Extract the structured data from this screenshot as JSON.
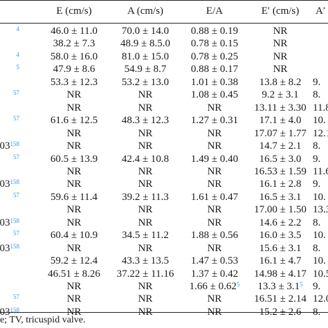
{
  "headers": [
    "E (cm/s)",
    "A (cm/s)",
    "E/A",
    "E′ (cm/s)",
    "A′"
  ],
  "rows": [
    {
      "label": "",
      "ref": "4",
      "E": "46.0 ± 11.0",
      "A": "70.0 ± 14.0",
      "EA": "0.88 ± 0.19",
      "Ep": "NR",
      "Ap": ""
    },
    {
      "label": "",
      "ref": "",
      "E": "38.2 ± 7.3",
      "A": "48.9 ± 8.5.0",
      "EA": "0.78 ± 0.15",
      "Ep": "NR",
      "Ap": ""
    },
    {
      "label": "",
      "ref": "4",
      "E": "58.0 ± 16.0",
      "A": "81.0 ± 15.0",
      "EA": "0.78 ± 0.25",
      "Ep": "NR",
      "Ap": ""
    },
    {
      "label": "",
      "ref": "5",
      "E": "47.9 ± 8.6",
      "A": "54.9 ± 8.7",
      "EA": "0.88 ± 0.17",
      "Ep": "NR",
      "Ap": ""
    },
    {
      "label": "",
      "ref": "",
      "E": "53.3 ± 12.3",
      "A": "53.2 ± 13.0",
      "EA": "1.01 ± 0.38",
      "Ep": "13.8 ± 8.2",
      "Ap": "9."
    },
    {
      "label": "",
      "ref": "57",
      "E": "NR",
      "A": "NR",
      "EA": "1.08 ± 0.45",
      "Ep": "9.2 ± 3.1",
      "Ap": "8."
    },
    {
      "label": "",
      "ref": "",
      "E": "NR",
      "A": "NR",
      "EA": "NR",
      "Ep": "13.11 ± 3.30",
      "Ap": "11.8"
    },
    {
      "label": "",
      "ref": "57",
      "E": "61.6 ± 12.5",
      "A": "48.3 ± 12.3",
      "EA": "1.27 ± 0.31",
      "Ep": "17.1 ± 4.0",
      "Ap": "10."
    },
    {
      "label": "",
      "ref": "",
      "E": "NR",
      "A": "NR",
      "EA": "NR",
      "Ep": "17.07 ± 1.77",
      "Ap": "12.1"
    },
    {
      "label": "003",
      "ref": "158",
      "E": "NR",
      "A": "NR",
      "EA": "NR",
      "Ep": "14.7 ± 2.1",
      "Ap": "8."
    },
    {
      "label": "",
      "ref": "57",
      "E": "60.5 ± 13.9",
      "A": "42.4 ± 10.8",
      "EA": "1.49 ± 0.40",
      "Ep": "16.5 ± 3.0",
      "Ap": "9."
    },
    {
      "label": "",
      "ref": "",
      "E": "NR",
      "A": "NR",
      "EA": "NR",
      "Ep": "16.53 ± 1.59",
      "Ap": "11.6"
    },
    {
      "label": "003",
      "ref": "158",
      "E": "NR",
      "A": "NR",
      "EA": "NR",
      "Ep": "16.1 ± 2.8",
      "Ap": "9."
    },
    {
      "label": "",
      "ref": "57",
      "E": "59.6 ± 11.4",
      "A": "39.2 ± 11.3",
      "EA": "1.61 ± 0.47",
      "Ep": "16.5 ± 3.1",
      "Ap": "10."
    },
    {
      "label": "",
      "ref": "",
      "E": "NR",
      "A": "NR",
      "EA": "NR",
      "Ep": "17.00 ± 1.50",
      "Ap": "13.3"
    },
    {
      "label": "003",
      "ref": "158",
      "E": "NR",
      "A": "NR",
      "EA": "NR",
      "Ep": "14.6 ± 2.2",
      "Ap": "8."
    },
    {
      "label": "",
      "ref": "57",
      "E": "60.4 ± 10.9",
      "A": "34.5 ± 11.2",
      "EA": "1.88 ± 0.56",
      "Ep": "16.0 ± 3.5",
      "Ap": "10."
    },
    {
      "label": "003",
      "ref": "158",
      "E": "NR",
      "A": "NR",
      "EA": "NR",
      "Ep": "15.6 ± 3.1",
      "Ap": "8."
    },
    {
      "label": "",
      "ref": "",
      "E": "59.2 ± 12.4",
      "A": "43.3 ± 13.5",
      "EA": "1.47 ± 0.53",
      "Ep": "16.1 ± 4.7",
      "Ap": "10."
    },
    {
      "label": "",
      "ref": "",
      "E": "46.51 ± 8.26",
      "A": "37.22 ± 11.16",
      "EA": "1.37 ± 0.42",
      "Ep": "14.98 ± 4.17",
      "Ap": "10.5"
    },
    {
      "label": "",
      "ref": "",
      "E": "NR",
      "A": "NR",
      "EA": "1.66 ± 0.62",
      "EAref": "5",
      "Ep": "13.3 ± 3.1",
      "Epref": "5",
      "Ap": "9."
    },
    {
      "label": "",
      "ref": "57",
      "E": "NR",
      "A": "NR",
      "EA": "NR",
      "Ep": "16.51 ± 2.14",
      "Ap": "12.0"
    },
    {
      "label": "003",
      "ref": "158",
      "E": "NR",
      "A": "NR",
      "EA": "NR",
      "Ep": "15.2 ± 2.6",
      "Ap": "8."
    }
  ],
  "footnote": "e; TV, tricuspid valve."
}
